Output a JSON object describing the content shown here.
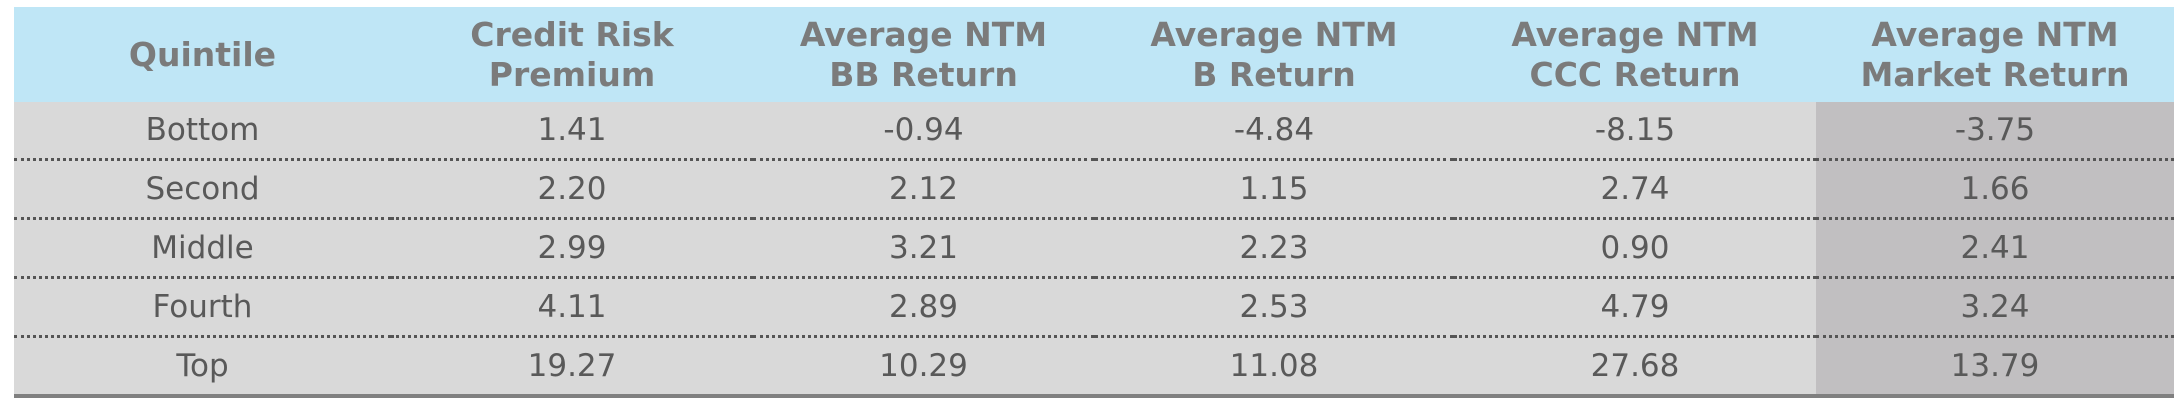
{
  "table": {
    "header": [
      "Quintile",
      "Credit Risk Premium",
      "Average NTM BB Return",
      "Average NTM B Return",
      "Average NTM CCC Return",
      "Average NTM Market Return"
    ],
    "rows": [
      [
        "Bottom",
        "1.41",
        "-0.94",
        "-4.84",
        "-8.15",
        "-3.75"
      ],
      [
        "Second",
        "2.20",
        "2.12",
        "1.15",
        "2.74",
        "1.66"
      ],
      [
        "Middle",
        "2.99",
        "3.21",
        "2.23",
        "0.90",
        "2.41"
      ],
      [
        "Fourth",
        "4.11",
        "2.89",
        "2.53",
        "4.79",
        "3.24"
      ],
      [
        "Top",
        "19.27",
        "10.29",
        "11.08",
        "27.68",
        "13.79"
      ]
    ]
  }
}
